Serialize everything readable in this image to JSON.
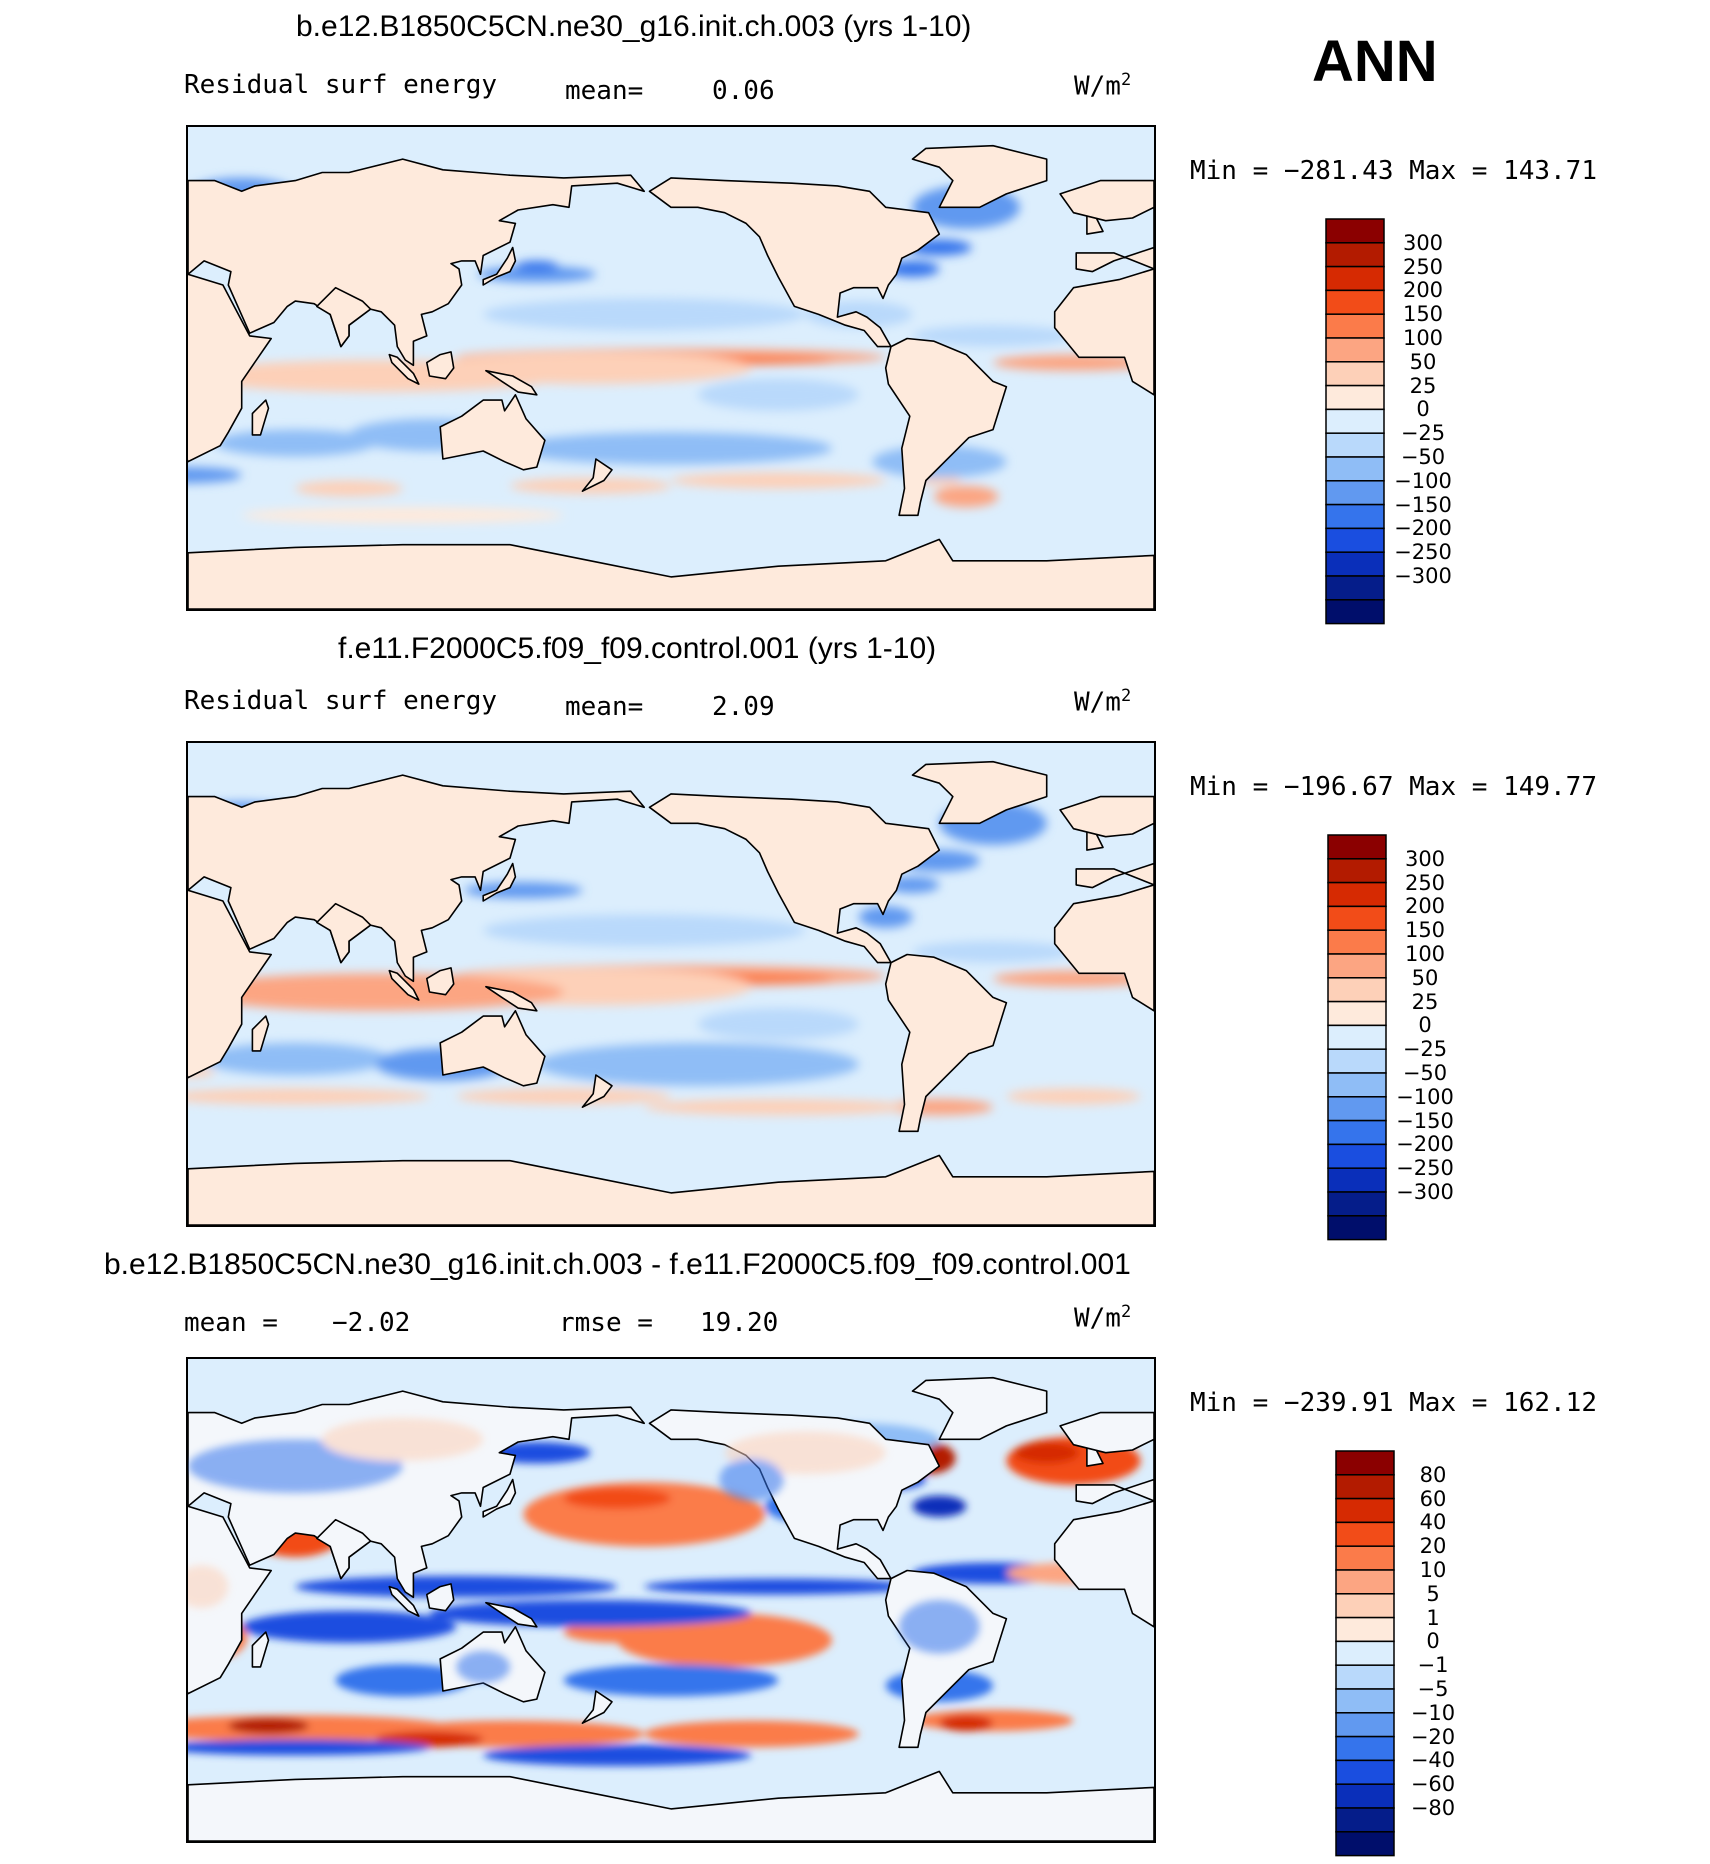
{
  "season": "ANN",
  "panels": [
    {
      "title": "b.e12.B1850C5CN.ne30_g16.init.ch.003 (yrs 1-10)",
      "left_label": "Residual surf energy",
      "stat1_label": "mean=",
      "stat1_value": "0.06",
      "stat2_label": "",
      "stat2_value": "",
      "units": "W/m",
      "units_sup": "2",
      "min_max": "Min = −281.43 Max = 143.71",
      "colorbar": {
        "colors": [
          "#8b0000",
          "#b31b00",
          "#d62a02",
          "#f24c18",
          "#fb7b4a",
          "#fca582",
          "#fdd0b8",
          "#feeadc",
          "#dceefd",
          "#b9d9fb",
          "#8fbdf6",
          "#6199f0",
          "#3574ec",
          "#1a4ee0",
          "#0a2fba",
          "#051d8a",
          "#000e6b"
        ],
        "labels": [
          "300",
          "250",
          "200",
          "150",
          "100",
          "50",
          "25",
          "0",
          "−25",
          "−50",
          "−100",
          "−150",
          "−200",
          "−250",
          "−300"
        ]
      }
    },
    {
      "title": "f.e11.F2000C5.f09_f09.control.001 (yrs 1-10)",
      "left_label": "Residual surf energy",
      "stat1_label": "mean=",
      "stat1_value": "2.09",
      "stat2_label": "",
      "stat2_value": "",
      "units": "W/m",
      "units_sup": "2",
      "min_max": "Min = −196.67 Max = 149.77",
      "colorbar": {
        "colors": [
          "#8b0000",
          "#b31b00",
          "#d62a02",
          "#f24c18",
          "#fb7b4a",
          "#fca582",
          "#fdd0b8",
          "#feeadc",
          "#dceefd",
          "#b9d9fb",
          "#8fbdf6",
          "#6199f0",
          "#3574ec",
          "#1a4ee0",
          "#0a2fba",
          "#051d8a",
          "#000e6b"
        ],
        "labels": [
          "300",
          "250",
          "200",
          "150",
          "100",
          "50",
          "25",
          "0",
          "−25",
          "−50",
          "−100",
          "−150",
          "−200",
          "−250",
          "−300"
        ]
      }
    },
    {
      "title": "b.e12.B1850C5CN.ne30_g16.init.ch.003 - f.e11.F2000C5.f09_f09.control.001",
      "left_label": "",
      "stat1_label": "mean =",
      "stat1_value": "−2.02",
      "stat2_label": "rmse =",
      "stat2_value": "19.20",
      "units": "W/m",
      "units_sup": "2",
      "min_max": "Min = −239.91 Max = 162.12",
      "colorbar": {
        "colors": [
          "#8b0000",
          "#b31b00",
          "#d62a02",
          "#f24c18",
          "#fb7b4a",
          "#fca582",
          "#fdd0b8",
          "#feeadc",
          "#dceefd",
          "#b9d9fb",
          "#8fbdf6",
          "#6199f0",
          "#3574ec",
          "#1a4ee0",
          "#0a2fba",
          "#051d8a",
          "#000e6b"
        ],
        "labels": [
          "80",
          "60",
          "40",
          "20",
          "10",
          "5",
          "1",
          "0",
          "−1",
          "−5",
          "−10",
          "−20",
          "−40",
          "−60",
          "−80"
        ]
      }
    }
  ]
}
